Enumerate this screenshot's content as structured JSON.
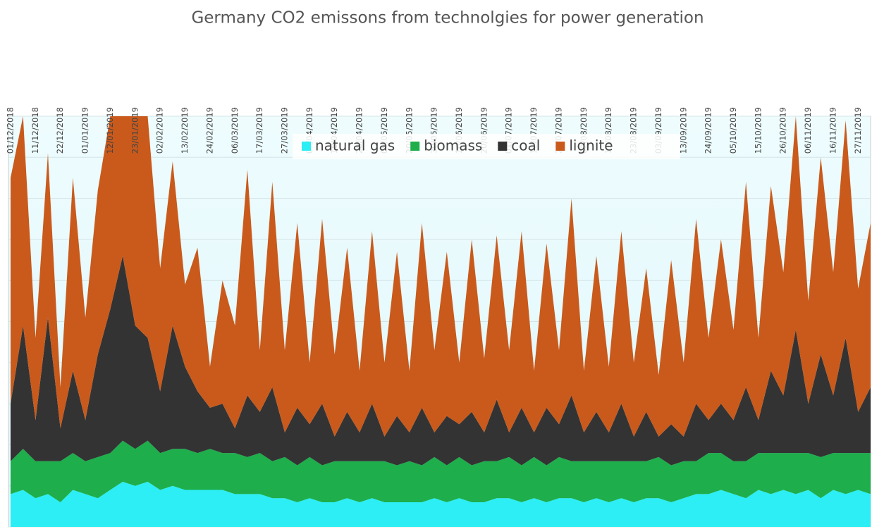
{
  "chart_data": {
    "type": "stacked_area",
    "title": "Germany  CO2 emissons from technolgies for power generation",
    "categories": [
      "01/12/2018",
      null,
      "11/12/2018",
      null,
      "22/12/2018",
      null,
      "01/01/2019",
      null,
      "12/01/2019",
      null,
      "23/01/2019",
      null,
      "02/02/2019",
      null,
      "13/02/2019",
      null,
      "24/02/2019",
      null,
      "06/03/2019",
      null,
      "17/03/2019",
      null,
      "27/03/2019",
      null,
      "07/04/2019",
      null,
      "18/04/2019",
      null,
      "28/04/2019",
      null,
      "09/05/2019",
      null,
      "20/05/2019",
      null,
      "30/05/2019",
      null,
      "10/06/2019",
      null,
      "20/06/2019",
      null,
      "01/07/2019",
      null,
      "12/07/2019",
      null,
      "22/07/2019",
      null,
      "02/08/2019",
      null,
      "13/08/2019",
      null,
      "23/08/2019",
      null,
      "03/09/2019",
      null,
      "13/09/2019",
      null,
      "24/09/2019",
      null,
      "05/10/2019",
      null,
      "15/10/2019",
      null,
      "26/10/2019",
      null,
      "06/11/2019",
      null,
      "16/11/2019",
      null,
      "27/11/2019",
      null
    ],
    "series": [
      {
        "name": "natural gas",
        "color": "#2ceef4",
        "values": [
          8,
          9,
          7,
          8,
          6,
          9,
          8,
          7,
          9,
          11,
          10,
          11,
          9,
          10,
          9,
          9,
          9,
          9,
          8,
          8,
          8,
          7,
          7,
          6,
          7,
          6,
          6,
          7,
          6,
          7,
          6,
          6,
          6,
          6,
          7,
          6,
          7,
          6,
          6,
          7,
          7,
          6,
          7,
          6,
          7,
          7,
          6,
          7,
          6,
          7,
          6,
          7,
          7,
          6,
          7,
          8,
          8,
          9,
          8,
          7,
          9,
          8,
          9,
          8,
          9,
          7,
          9,
          8,
          9,
          8
        ]
      },
      {
        "name": "biomass",
        "color": "#1eae4b",
        "values": [
          8,
          10,
          9,
          8,
          10,
          9,
          8,
          10,
          9,
          10,
          9,
          10,
          9,
          9,
          10,
          9,
          10,
          9,
          10,
          9,
          10,
          9,
          10,
          9,
          10,
          9,
          10,
          9,
          10,
          9,
          10,
          9,
          10,
          9,
          10,
          9,
          10,
          9,
          10,
          9,
          10,
          9,
          10,
          9,
          10,
          9,
          10,
          9,
          10,
          9,
          10,
          9,
          10,
          9,
          9,
          8,
          10,
          9,
          8,
          9,
          9,
          10,
          9,
          10,
          9,
          10,
          9,
          10,
          9,
          10
        ]
      },
      {
        "name": "coal",
        "color": "#333333",
        "values": [
          14,
          30,
          10,
          35,
          8,
          20,
          10,
          25,
          35,
          45,
          30,
          25,
          15,
          30,
          20,
          15,
          10,
          12,
          6,
          15,
          10,
          18,
          6,
          14,
          8,
          15,
          6,
          12,
          7,
          14,
          6,
          12,
          7,
          14,
          6,
          12,
          8,
          13,
          7,
          15,
          6,
          14,
          6,
          14,
          8,
          16,
          7,
          12,
          7,
          14,
          6,
          12,
          5,
          10,
          6,
          14,
          8,
          12,
          10,
          18,
          8,
          20,
          14,
          30,
          12,
          25,
          14,
          28,
          10,
          16
        ]
      },
      {
        "name": "lignite",
        "color": "#c95a1c",
        "values": [
          55,
          51,
          20,
          40,
          10,
          47,
          25,
          40,
          47,
          34,
          51,
          54,
          30,
          40,
          20,
          35,
          10,
          30,
          25,
          55,
          15,
          50,
          20,
          45,
          15,
          45,
          20,
          40,
          15,
          42,
          18,
          40,
          15,
          45,
          20,
          40,
          15,
          42,
          18,
          40,
          20,
          43,
          15,
          40,
          18,
          48,
          15,
          38,
          16,
          42,
          18,
          35,
          15,
          40,
          18,
          45,
          20,
          40,
          22,
          50,
          20,
          45,
          30,
          52,
          25,
          48,
          30,
          53,
          30,
          40
        ]
      }
    ],
    "ylim": [
      0,
      100
    ],
    "yticks": [
      0,
      10,
      20,
      30,
      40,
      50,
      60,
      70,
      80,
      90,
      100
    ],
    "grid": true
  }
}
